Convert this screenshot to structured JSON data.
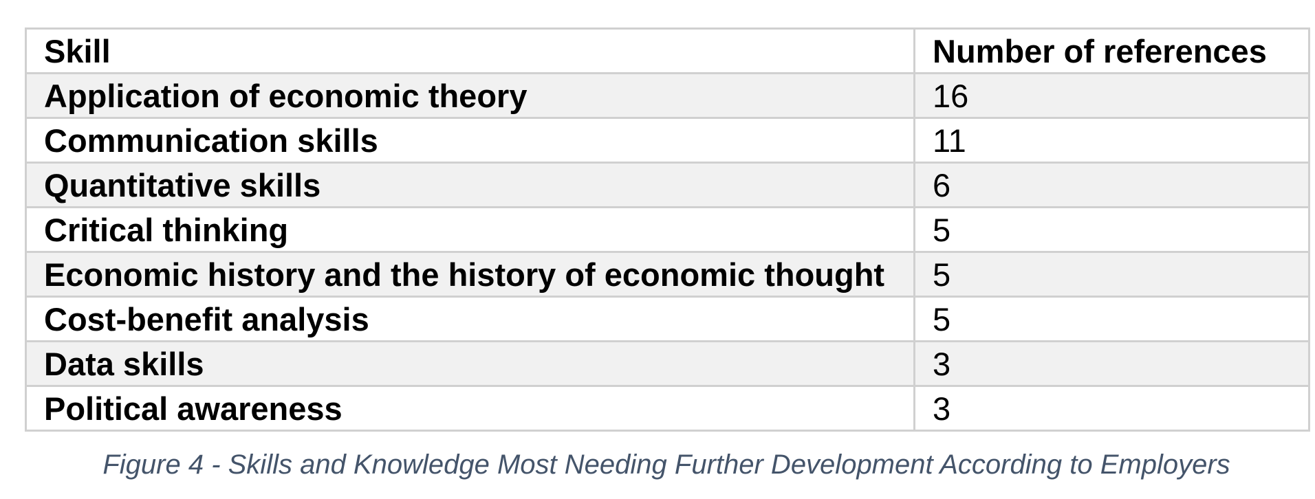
{
  "table": {
    "headers": [
      "Skill",
      "Number of references"
    ],
    "rows": [
      {
        "skill": "Application of economic theory",
        "count": "16"
      },
      {
        "skill": "Communication skills",
        "count": "11"
      },
      {
        "skill": "Quantitative skills",
        "count": "6"
      },
      {
        "skill": "Critical thinking",
        "count": "5"
      },
      {
        "skill": "Economic history and the history of economic thought",
        "count": "5"
      },
      {
        "skill": "Cost-benefit analysis",
        "count": "5"
      },
      {
        "skill": "Data skills",
        "count": "3"
      },
      {
        "skill": "Political awareness",
        "count": "3"
      }
    ]
  },
  "caption": "Figure 4 - Skills and Knowledge Most Needing Further Development According to Employers",
  "colors": {
    "header_bg": "#ffffff",
    "band_bg": "#f1f1f1",
    "border": "#d0d0d0",
    "caption": "#44546a"
  }
}
